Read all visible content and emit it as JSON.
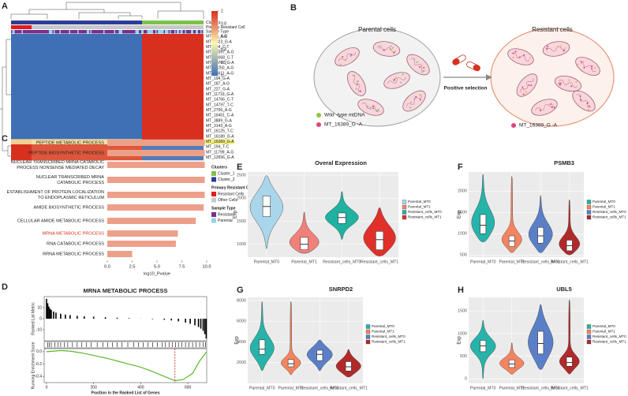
{
  "panel_labels": [
    "A",
    "B",
    "C",
    "D",
    "E",
    "F",
    "G",
    "H"
  ],
  "diagram": {
    "title_left": "Parental cells",
    "title_right": "Resistant cells",
    "arrow_label": "Positive selection",
    "legend": [
      "Wild -type mtDNA",
      "MT_16389_G -A"
    ],
    "right_legend": "MT_16389_G -A"
  },
  "chart_data": [
    {
      "type": "heatmap",
      "annotation_labels": [
        "Clusters",
        "Primary Resistant Cell",
        "Sample Type"
      ],
      "row_labels": [
        "MT_72_A-G",
        "MT_4823_G-A",
        "MT_204_C-T",
        "MT_16397_A-G",
        "MT_16068_C-T",
        "MT_13707_G-A",
        "MT_11250_A-G",
        "MT_13611_A-G",
        "MT_194_G-A",
        "MT_187_A-G",
        "MT_227_G-A",
        "MT_11719_G-A",
        "MT_14766_C-T",
        "MT_14797_T-C",
        "MT_2706_A-G",
        "MT_16451_C-A",
        "MT_3889_G-A",
        "MT_3143_A-G",
        "MT_16125_T-C",
        "MT_16189_G-A",
        "MT_16389_G-A",
        "MT_194_T-C",
        "MT_11799_A-G",
        "MT_12656_G-A"
      ],
      "values": [
        [
          0,
          0,
          1
        ],
        [
          0,
          0,
          1
        ],
        [
          0,
          0,
          1
        ],
        [
          0,
          0,
          1
        ],
        [
          0,
          0,
          1
        ],
        [
          0,
          0,
          1
        ],
        [
          0,
          0,
          1
        ],
        [
          0,
          0,
          1
        ],
        [
          0,
          0,
          1
        ],
        [
          0,
          0,
          1
        ],
        [
          0,
          0,
          1
        ],
        [
          0,
          0,
          1
        ],
        [
          0,
          0,
          1
        ],
        [
          0,
          0,
          1
        ],
        [
          0,
          0,
          1
        ],
        [
          0,
          0,
          1
        ],
        [
          0,
          0,
          1
        ],
        [
          0,
          0,
          1
        ],
        [
          0,
          0,
          1
        ],
        [
          0,
          0,
          1
        ],
        [
          0.6,
          0.55,
          0.9
        ],
        [
          1,
          0.9,
          0.05
        ],
        [
          1,
          0.9,
          0.05
        ],
        [
          1,
          0.9,
          0.05
        ]
      ],
      "clim": [
        0,
        1
      ],
      "colors": [
        "#3f6fb5",
        "#fbf5b0",
        "#d7301f"
      ],
      "colorbar_ticks": [
        0,
        0.2,
        0.4,
        0.6,
        0.8,
        1
      ],
      "highlight_row": 20,
      "highlight_color": "#f5ef7a",
      "legend": [
        {
          "title": "Clusters",
          "items": [
            {
              "name": "Cluster_1",
              "color": "#7fc24b"
            },
            {
              "name": "Cluster_2",
              "color": "#2c3e98"
            }
          ]
        },
        {
          "title": "Primary Resistant Cell",
          "items": [
            {
              "name": "Resistant Cells",
              "color": "#e41a1c"
            },
            {
              "name": "Other Cells",
              "color": "#c8c8c8"
            }
          ]
        },
        {
          "title": "Sample Type",
          "items": [
            {
              "name": "Resistant",
              "color": "#7b2d8e"
            },
            {
              "name": "Parental",
              "color": "#8fd6e8"
            }
          ]
        }
      ]
    },
    {
      "type": "barh",
      "categories": [
        [
          "PEPTIDE METABOLIC PROCESS"
        ],
        [
          "PEPTIDE BIOSYNTHETIC PROCESS"
        ],
        [
          "NUCLEAR TRANSCRIBED MRNA CATABOLIC",
          "PROCESS NONSENSE MEDIATED DECAY"
        ],
        [
          "NUCLEAR TRANSCRIBED MRNA",
          "CATABOLIC PROCESS"
        ],
        [
          "ESTABLISHMENT OF PROTEIN LOCALIZATION",
          "TO ENDOPLASMIC RETICULUM"
        ],
        [
          "AMIDE BIOSYNTHETIC PROCESS"
        ],
        [
          "CELLULAR AMIDE METABOLIC PROCESS"
        ],
        [
          "MRNA METABOLIC PROCESS"
        ],
        [
          "RNA CATABOLIC PROCESS"
        ],
        [
          "RRNA METABOLIC PROCESS"
        ]
      ],
      "values": [
        9.8,
        9.8,
        9.8,
        9.8,
        9.8,
        9.7,
        8.9,
        7.1,
        6.9,
        2.5
      ],
      "color": "#eda089",
      "highlight": 7,
      "highlight_color": "#d7301f",
      "xlabel": "log10_Pvalue",
      "xlim": [
        0,
        10
      ],
      "xticks": [
        {
          "value": 0,
          "label": "0.0"
        },
        2.5,
        {
          "value": 5,
          "label": "5.0"
        },
        7.5,
        {
          "value": 10,
          "label": "10.0"
        }
      ]
    },
    {
      "type": "enrichment",
      "title": "MRNA METABOLIC PROCESS",
      "xlabel": "Position in the Ranked List of Genes",
      "xlim": [
        -10,
        680
      ],
      "xticks": [
        0,
        200,
        400,
        600
      ],
      "metric": {
        "ylabel": "Ranked List Metric",
        "ylim": [
          -20,
          20
        ],
        "yticks": [
          -10,
          0,
          10
        ],
        "color": "#000000",
        "x": [
          0,
          5,
          10,
          15,
          20,
          30,
          40,
          60,
          80,
          100,
          130,
          160,
          200,
          250,
          300,
          350,
          400,
          450,
          500,
          530,
          560,
          590,
          610,
          630,
          645,
          655,
          665,
          672,
          678
        ],
        "values": [
          18,
          14,
          11,
          9,
          8,
          6.5,
          5.5,
          4.5,
          3.8,
          3.2,
          2.6,
          2.2,
          1.8,
          1.3,
          0.9,
          0.5,
          0.1,
          -0.4,
          -1,
          -1.6,
          -2.4,
          -3.5,
          -4.6,
          -6,
          -7.5,
          -9,
          -11,
          -14,
          -18
        ]
      },
      "hits": [
        5,
        12,
        20,
        35,
        48,
        60,
        75,
        90,
        110,
        130,
        150,
        170,
        190,
        215,
        240,
        260,
        280,
        300,
        320,
        345,
        370,
        390,
        410,
        430,
        450,
        470,
        490,
        505,
        520,
        535,
        548,
        560,
        575,
        590,
        605,
        620,
        635,
        650,
        665,
        675
      ],
      "score": {
        "ylabel": "Running Enrichment Score",
        "ylim": [
          -0.5,
          0.05
        ],
        "yticks": [
          {
            "value": 0,
            "label": "0.0"
          },
          -0.2,
          -0.4
        ],
        "color": "#5cb82e",
        "x": [
          0,
          30,
          60,
          100,
          150,
          200,
          250,
          300,
          350,
          400,
          450,
          500,
          545,
          580,
          620,
          650,
          680
        ],
        "values": [
          0,
          0.01,
          0.02,
          0.01,
          -0.02,
          -0.06,
          -0.1,
          -0.15,
          -0.2,
          -0.25,
          -0.32,
          -0.4,
          -0.47,
          -0.45,
          -0.35,
          -0.15,
          0
        ]
      },
      "peak_x": 545,
      "peak_color": "#c0392b"
    },
    {
      "type": "violin",
      "title": "Overal Expression",
      "ylabel": "Exp",
      "grid": true,
      "categories": [
        "Parental_MT0",
        "Parental_MT1",
        "Resistant_cells_MT0",
        "Resistant_cells_MT1"
      ],
      "ylim": [
        720,
        2570
      ],
      "yticks": [
        1000,
        1500,
        2000,
        2500
      ],
      "series": [
        {
          "name": "Parental_MT0",
          "color": "#a9d6ea",
          "min": 900,
          "q1": 1600,
          "median": 1820,
          "q3": 2050,
          "max": 2500
        },
        {
          "name": "Parental_MT1",
          "color": "#f0807a",
          "min": 800,
          "q1": 880,
          "median": 1000,
          "q3": 1150,
          "max": 1700
        },
        {
          "name": "Resistant_cells_MT0",
          "color": "#20b2a0",
          "min": 1100,
          "q1": 1450,
          "median": 1580,
          "q3": 1680,
          "max": 2150
        },
        {
          "name": "Resistant_cells_MT1",
          "color": "#e0302a",
          "min": 740,
          "q1": 880,
          "median": 1100,
          "q3": 1280,
          "max": 1800
        }
      ]
    },
    {
      "type": "violin",
      "title": "PSMB3",
      "ylabel": "Exp",
      "grid": true,
      "categories": [
        "Parental_MT0",
        "Parental_MT1",
        "Resistant_cells_MT0",
        "Resistant_cells_MT1"
      ],
      "ylim": [
        450,
        2450
      ],
      "yticks": [
        500,
        1000,
        1500,
        2000
      ],
      "series": [
        {
          "name": "Parental_MT0",
          "color": "#27b3a9",
          "min": 800,
          "q1": 1000,
          "median": 1200,
          "q3": 1450,
          "max": 2400
        },
        {
          "name": "Parental_MT1",
          "color": "#f4845f",
          "min": 550,
          "q1": 700,
          "median": 830,
          "q3": 950,
          "max": 2350
        },
        {
          "name": "Resistant_cells_MT0",
          "color": "#5b7fc7",
          "min": 550,
          "q1": 780,
          "median": 950,
          "q3": 1150,
          "max": 1900
        },
        {
          "name": "Resistant_cells_MT1",
          "color": "#b02a2a",
          "min": 500,
          "q1": 600,
          "median": 720,
          "q3": 850,
          "max": 1800
        }
      ]
    },
    {
      "type": "violin",
      "title": "SNRPD2",
      "ylabel": "Exp",
      "grid": true,
      "categories": [
        "Parental_MT0",
        "Parental_MT1",
        "Resistant_cells_MT0",
        "Resistant_cells_MT1"
      ],
      "ylim": [
        0,
        8300
      ],
      "yticks": [
        2000,
        4000,
        6000,
        8000
      ],
      "series": [
        {
          "name": "Parental_MT0",
          "color": "#27b3a9",
          "min": 1200,
          "q1": 2800,
          "median": 3300,
          "q3": 4200,
          "max": 7900
        },
        {
          "name": "Parental_MT1",
          "color": "#f4845f",
          "min": 800,
          "q1": 1600,
          "median": 1900,
          "q3": 2300,
          "max": 7900
        },
        {
          "name": "Resistant_cells_MT0",
          "color": "#5b7fc7",
          "min": 1200,
          "q1": 2200,
          "median": 2800,
          "q3": 3200,
          "max": 4200
        },
        {
          "name": "Resistant_cells_MT1",
          "color": "#b02a2a",
          "min": 600,
          "q1": 1200,
          "median": 1600,
          "q3": 2100,
          "max": 3300
        }
      ]
    },
    {
      "type": "violin",
      "title": "UBL5",
      "ylabel": "Exp",
      "grid": true,
      "categories": [
        "Parental_MT0",
        "Parental_MT1",
        "Resistant_cells_MT0",
        "Resistant_cells_MT1"
      ],
      "ylim": [
        -100,
        1800
      ],
      "yticks": [
        0,
        500,
        1000,
        1500
      ],
      "series": [
        {
          "name": "Parental_MT0",
          "color": "#27b3a9",
          "min": 0,
          "q1": 600,
          "median": 730,
          "q3": 850,
          "max": 1300
        },
        {
          "name": "Parental_MT1",
          "color": "#f4845f",
          "min": 100,
          "q1": 250,
          "median": 330,
          "q3": 420,
          "max": 800
        },
        {
          "name": "Resistant_cells_MT0",
          "color": "#5b7fc7",
          "min": 200,
          "q1": 550,
          "median": 780,
          "q3": 1050,
          "max": 1650
        },
        {
          "name": "Resistant_cells_MT1",
          "color": "#b02a2a",
          "min": 100,
          "q1": 280,
          "median": 360,
          "q3": 480,
          "max": 1750
        }
      ]
    }
  ]
}
